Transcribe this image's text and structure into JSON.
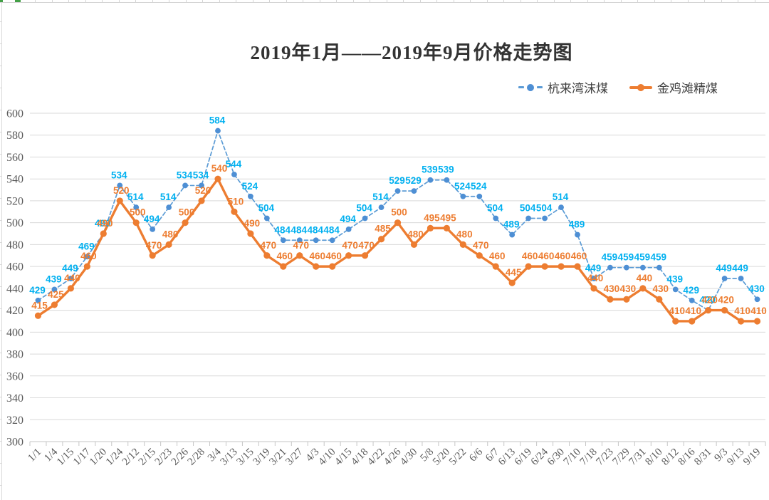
{
  "chart_data": {
    "type": "line",
    "title": "2019年1月——2019年9月价格走势图",
    "categories": [
      "1/1",
      "1/4",
      "1/15",
      "1/17",
      "1/20",
      "1/24",
      "2/12",
      "2/15",
      "2/23",
      "2/26",
      "2/28",
      "3/4",
      "3/13",
      "3/15",
      "3/19",
      "3/21",
      "3/27",
      "4/3",
      "4/10",
      "4/15",
      "4/18",
      "4/22",
      "4/26",
      "4/30",
      "5/8",
      "5/20",
      "5/22",
      "6/6",
      "6/7",
      "6/13",
      "6/19",
      "6/24",
      "6/30",
      "7/10",
      "7/18",
      "7/23",
      "7/29",
      "7/31",
      "8/10",
      "8/12",
      "8/16",
      "8/31",
      "9/3",
      "9/13",
      "9/19"
    ],
    "series": [
      {
        "name": "杭来湾沫煤",
        "line_style": "dashed",
        "line_color": "#5b9bd5",
        "marker_color": "#4e8fd4",
        "label_color": "#00b0f0",
        "values": [
          429,
          439,
          449,
          469,
          490,
          534,
          514,
          494,
          514,
          534,
          534,
          584,
          544,
          524,
          504,
          484,
          484,
          484,
          484,
          494,
          504,
          514,
          529,
          529,
          539,
          539,
          524,
          524,
          504,
          489,
          504,
          504,
          514,
          489,
          449,
          459,
          459,
          459,
          459,
          439,
          429,
          420,
          449,
          449,
          430
        ]
      },
      {
        "name": "金鸡滩精煤",
        "line_style": "solid",
        "line_color": "#ed7d31",
        "marker_color": "#ed7d31",
        "label_color": "#ed7d31",
        "values": [
          415,
          425,
          440,
          460,
          490,
          520,
          500,
          470,
          480,
          500,
          520,
          540,
          510,
          490,
          470,
          460,
          470,
          460,
          460,
          470,
          470,
          485,
          500,
          480,
          495,
          495,
          480,
          470,
          460,
          445,
          460,
          460,
          460,
          460,
          440,
          430,
          430,
          440,
          430,
          410,
          410,
          420,
          420,
          410,
          410
        ]
      }
    ],
    "ylim": [
      300,
      600
    ],
    "ytick_step": 20,
    "grid": true,
    "legend_position": "top-right",
    "xlabel": "",
    "ylabel": "",
    "colors": {
      "gridline": "#d9d9d9",
      "axis_line": "#c6c6c6",
      "axis_text": "#595959",
      "title_text": "#333333"
    }
  }
}
